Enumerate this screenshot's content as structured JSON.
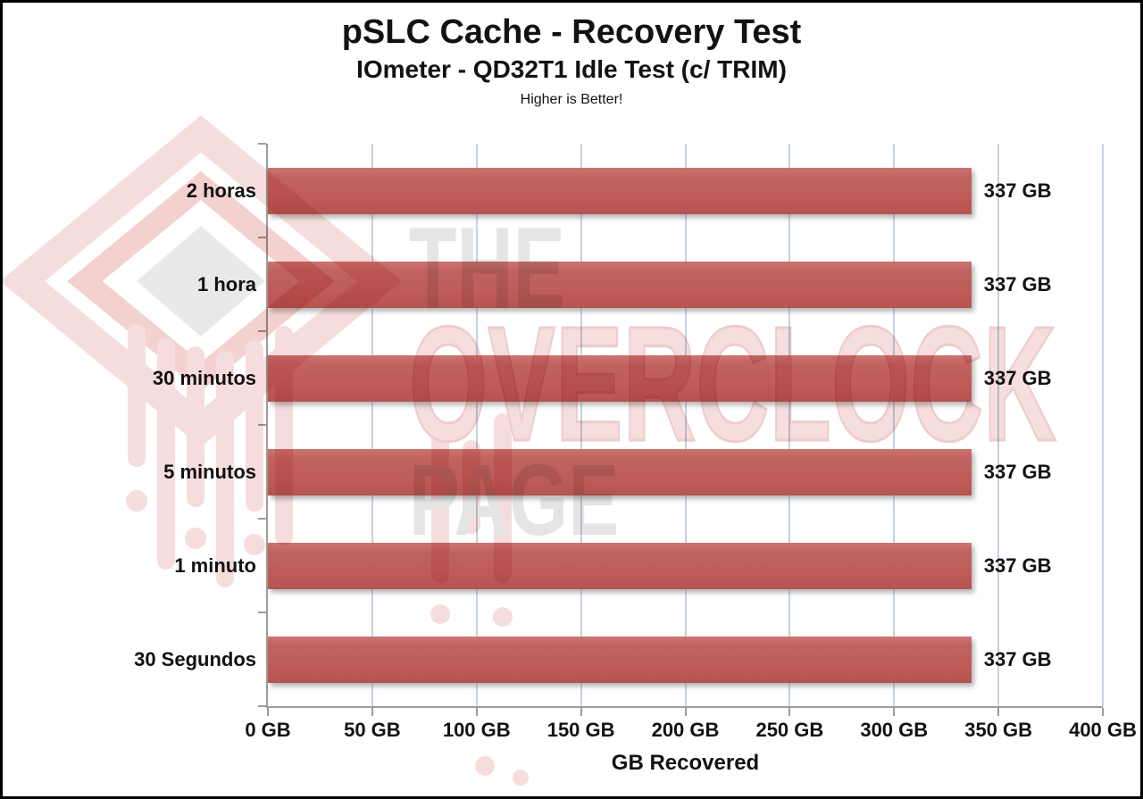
{
  "header": {
    "title": "pSLC Cache - Recovery Test",
    "subtitle": "IOmeter - QD32T1 Idle Test (c/ TRIM)",
    "note": "Higher is Better!"
  },
  "watermark": {
    "word1": "THE",
    "word2": "OVERCLOCK",
    "word3": "PAGE",
    "logo": "overclock-page-chip-logo"
  },
  "chart_data": {
    "type": "bar",
    "orientation": "horizontal",
    "title": "pSLC Cache - Recovery Test",
    "subtitle": "IOmeter - QD32T1 Idle Test (c/ TRIM)",
    "annotation": "Higher is Better!",
    "categories": [
      "2 horas",
      "1 hora",
      "30 minutos",
      "5 minutos",
      "1 minuto",
      "30 Segundos"
    ],
    "values": [
      337,
      337,
      337,
      337,
      337,
      337
    ],
    "value_labels": [
      "337 GB",
      "337 GB",
      "337 GB",
      "337 GB",
      "337 GB",
      "337 GB"
    ],
    "xlabel": "GB Recovered",
    "xlim": [
      0,
      400
    ],
    "xticks": [
      0,
      50,
      100,
      150,
      200,
      250,
      300,
      350,
      400
    ],
    "xtick_labels": [
      "0 GB",
      "50 GB",
      "100 GB",
      "150 GB",
      "200 GB",
      "250 GB",
      "300 GB",
      "350 GB",
      "400 GB"
    ],
    "grid": "vertical",
    "legend": "none",
    "bar_color": "#bf5e5b",
    "gridline_color": "#c3d2e4",
    "axis_color": "#9c9c9c",
    "text_color": "#121212"
  }
}
